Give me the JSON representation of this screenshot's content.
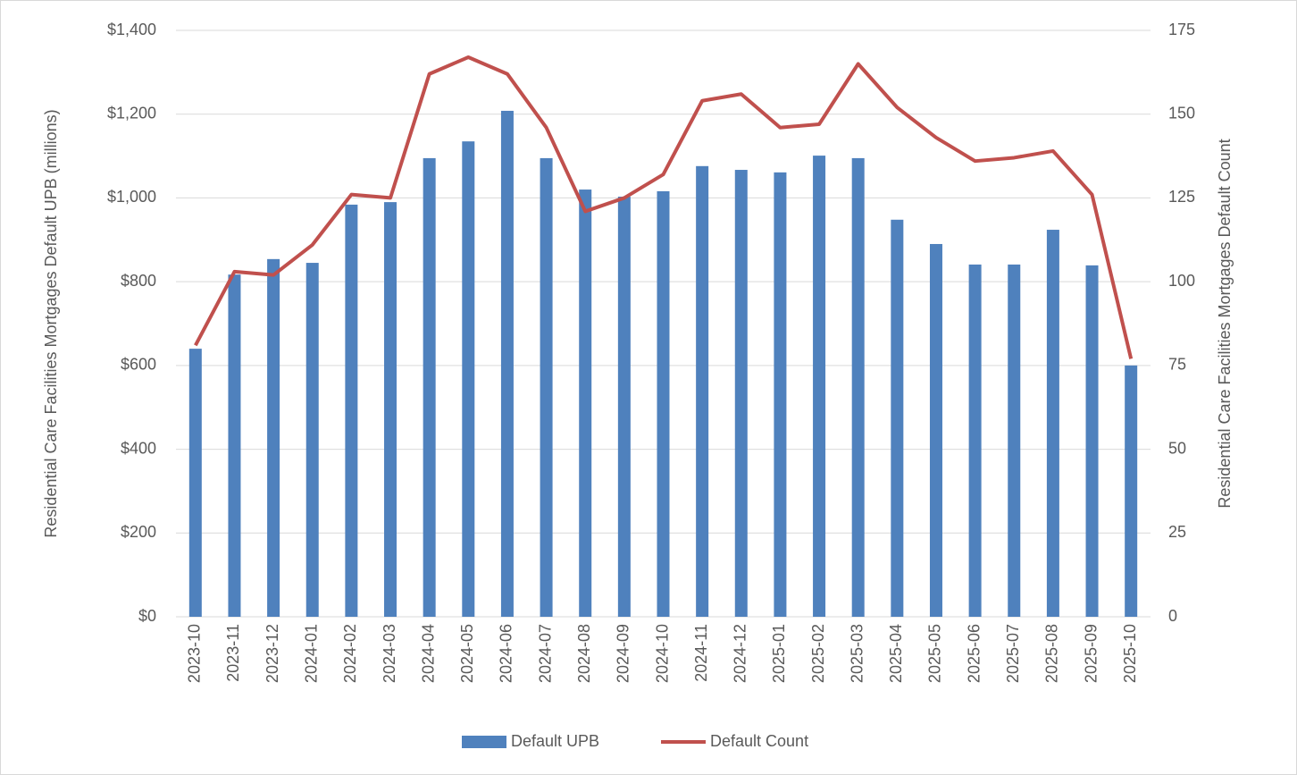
{
  "chart_data": {
    "type": "bar+line",
    "y_label": "Residential Care Facilities Mortgages Default UPB (millions)",
    "y2_label": "Residential Care Facilities Mortgages Default Count",
    "categories": [
      "2023-10",
      "2023-11",
      "2023-12",
      "2024-01",
      "2024-02",
      "2024-03",
      "2024-04",
      "2024-05",
      "2024-06",
      "2024-07",
      "2024-08",
      "2024-09",
      "2024-10",
      "2024-11",
      "2024-12",
      "2025-01",
      "2025-02",
      "2025-03",
      "2025-04",
      "2025-05",
      "2025-06",
      "2025-07",
      "2025-08",
      "2025-09",
      "2025-10"
    ],
    "series": [
      {
        "name": "Default UPB",
        "type": "bar",
        "color": "#4f81bd",
        "values": [
          640,
          817,
          854,
          845,
          984,
          990,
          1095,
          1135,
          1208,
          1095,
          1020,
          1003,
          1016,
          1076,
          1067,
          1061,
          1101,
          1095,
          948,
          890,
          841,
          841,
          924,
          839,
          600
        ]
      },
      {
        "name": "Default Count",
        "type": "line",
        "axis": "y2",
        "color": "#c0504d",
        "values": [
          81,
          103,
          102,
          111,
          126,
          125,
          162,
          167,
          162,
          146,
          121,
          125,
          132,
          154,
          156,
          146,
          147,
          165,
          152,
          143,
          136,
          137,
          139,
          126,
          77
        ]
      }
    ],
    "ylim": [
      0,
      1400
    ],
    "yticks": [
      {
        "value": 0,
        "label": "$0"
      },
      {
        "value": 200,
        "label": "$200"
      },
      {
        "value": 400,
        "label": "$400"
      },
      {
        "value": 600,
        "label": "$600"
      },
      {
        "value": 800,
        "label": "$800"
      },
      {
        "value": 1000,
        "label": "$1,000"
      },
      {
        "value": 1200,
        "label": "$1,200"
      },
      {
        "value": 1400,
        "label": "$1,400"
      }
    ],
    "y2lim": [
      0,
      175
    ],
    "y2ticks": [
      0,
      25,
      50,
      75,
      100,
      125,
      150,
      175
    ],
    "grid": true,
    "legend": "bottom"
  }
}
